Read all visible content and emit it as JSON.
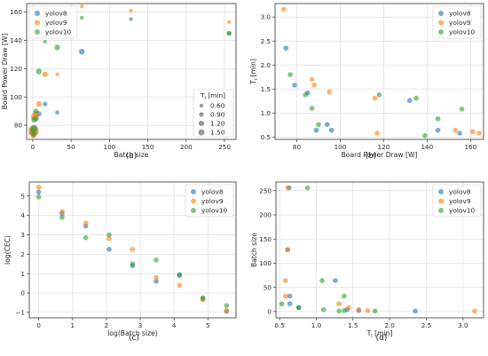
{
  "colors": {
    "yolov8": "#1f77b4",
    "yolov9": "#ff7f0e",
    "yolov10": "#2ca02c"
  },
  "chart_data": [
    {
      "id": "a",
      "panel_label": "(a)",
      "type": "scatter",
      "xlabel": "Batch size",
      "ylabel": "Board Power Draw [W]",
      "xlim": [
        -8,
        265
      ],
      "ylim": [
        70,
        166
      ],
      "xticks": [
        0,
        50,
        100,
        150,
        200,
        250
      ],
      "yticks": [
        80,
        100,
        120,
        140,
        160
      ],
      "grid": true,
      "legend": {
        "position": "top-left",
        "entries": [
          "yolov8",
          "yolov9",
          "yolov10"
        ]
      },
      "size_legend": {
        "position": "bottom-right",
        "title": "T_i [min]",
        "title_main": "T",
        "title_sub": "i",
        "title_rest": " [min]",
        "entries": [
          {
            "label": "0.60",
            "value": 0.6
          },
          {
            "label": "0.90",
            "value": 0.9
          },
          {
            "label": "1.20",
            "value": 1.2
          },
          {
            "label": "1.50",
            "value": 1.5
          }
        ]
      },
      "series": [
        {
          "name": "yolov8",
          "points": [
            [
              1,
              75,
              2.3
            ],
            [
              2,
              78,
              1.6
            ],
            [
              4,
              85,
              1.4
            ],
            [
              8,
              88,
              1.2
            ],
            [
              16,
              95,
              0.9
            ],
            [
              32,
              89,
              0.7
            ],
            [
              64,
              132,
              1.3
            ],
            [
              128,
              155,
              0.6
            ],
            [
              256,
              145,
              0.6
            ],
            [
              1,
              73,
              1.0
            ]
          ]
        },
        {
          "name": "yolov9",
          "points": [
            [
              1,
              76,
              3.1
            ],
            [
              2,
              86,
              1.7
            ],
            [
              4,
              88,
              1.5
            ],
            [
              8,
              95,
              1.3
            ],
            [
              16,
              116,
              1.2
            ],
            [
              32,
              116,
              0.6
            ],
            [
              64,
              164,
              0.6
            ],
            [
              128,
              161,
              0.6
            ],
            [
              256,
              153,
              0.6
            ],
            [
              1,
              73,
              1.4
            ]
          ]
        },
        {
          "name": "yolov10",
          "points": [
            [
              1,
              77,
              1.8
            ],
            [
              2,
              84,
              1.4
            ],
            [
              4,
              90,
              1.1
            ],
            [
              8,
              118,
              1.4
            ],
            [
              16,
              139,
              0.5
            ],
            [
              32,
              135,
              1.3
            ],
            [
              64,
              156,
              0.6
            ],
            [
              256,
              145,
              1.1
            ],
            [
              1,
              74,
              0.8
            ]
          ]
        }
      ]
    },
    {
      "id": "b",
      "panel_label": "(b)",
      "type": "scatter",
      "xlabel": "Board Power Draw [W]",
      "ylabel": "T_i [min]",
      "ylabel_main": "T",
      "ylabel_sub": "i",
      "ylabel_rest": " [min]",
      "xlim": [
        70,
        166
      ],
      "ylim": [
        0.45,
        3.28
      ],
      "xticks": [
        80,
        100,
        120,
        140,
        160
      ],
      "yticks": [
        0.5,
        1.0,
        1.5,
        2.0,
        2.5,
        3.0
      ],
      "ytick_labels": [
        "0.5",
        "1.0",
        "1.5",
        "2.0",
        "2.5",
        "3.0"
      ],
      "grid": true,
      "legend": {
        "position": "top-right",
        "entries": [
          "yolov8",
          "yolov9",
          "yolov10"
        ]
      },
      "series": [
        {
          "name": "yolov8",
          "points": [
            [
              75,
              2.35
            ],
            [
              79,
              1.58
            ],
            [
              85,
              1.42
            ],
            [
              89,
              0.64
            ],
            [
              94,
              0.76
            ],
            [
              96,
              0.64
            ],
            [
              132,
              1.26
            ],
            [
              145,
              0.64
            ],
            [
              155,
              0.58
            ]
          ]
        },
        {
          "name": "yolov9",
          "points": [
            [
              74,
              3.16
            ],
            [
              87,
              1.7
            ],
            [
              88,
              1.58
            ],
            [
              95,
              1.44
            ],
            [
              116,
              1.31
            ],
            [
              117,
              0.58
            ],
            [
              153,
              0.64
            ],
            [
              161,
              0.61
            ],
            [
              164,
              0.58
            ]
          ]
        },
        {
          "name": "yolov10",
          "points": [
            [
              77,
              1.8
            ],
            [
              84,
              1.38
            ],
            [
              87,
              1.1
            ],
            [
              90,
              0.76
            ],
            [
              118,
              1.38
            ],
            [
              135,
              1.31
            ],
            [
              139,
              0.53
            ],
            [
              145,
              0.88
            ],
            [
              156,
              1.08
            ]
          ]
        }
      ]
    },
    {
      "id": "c",
      "panel_label": "(c)",
      "type": "scatter",
      "xlabel": "log(Batch size)",
      "ylabel": "log(CEC)",
      "xlim": [
        -0.28,
        5.83
      ],
      "ylim": [
        -1.28,
        5.72
      ],
      "xticks": [
        0,
        1,
        2,
        3,
        4,
        5
      ],
      "yticks": [
        -1,
        0,
        1,
        2,
        3,
        4,
        5
      ],
      "ytick_labels": [
        "−1",
        "0",
        "1",
        "2",
        "3",
        "4",
        "5"
      ],
      "grid": true,
      "legend": {
        "position": "top-right",
        "entries": [
          "yolov8",
          "yolov9",
          "yolov10"
        ]
      },
      "series": [
        {
          "name": "yolov8",
          "points": [
            [
              0,
              5.2
            ],
            [
              0.69,
              4.1
            ],
            [
              1.39,
              3.45
            ],
            [
              2.08,
              2.25
            ],
            [
              2.77,
              1.4
            ],
            [
              3.47,
              0.6
            ],
            [
              4.16,
              0.95
            ],
            [
              4.85,
              -0.3
            ],
            [
              5.55,
              -0.95
            ]
          ]
        },
        {
          "name": "yolov9",
          "points": [
            [
              0,
              5.45
            ],
            [
              0.69,
              4.2
            ],
            [
              1.39,
              3.6
            ],
            [
              2.08,
              2.8
            ],
            [
              2.77,
              2.25
            ],
            [
              3.47,
              0.8
            ],
            [
              4.16,
              0.4
            ],
            [
              4.85,
              -0.35
            ],
            [
              5.55,
              -0.9
            ]
          ]
        },
        {
          "name": "yolov10",
          "points": [
            [
              0,
              4.95
            ],
            [
              0.69,
              3.9
            ],
            [
              1.39,
              2.85
            ],
            [
              2.08,
              3.0
            ],
            [
              2.77,
              1.5
            ],
            [
              3.47,
              1.7
            ],
            [
              4.16,
              0.9
            ],
            [
              4.85,
              -0.25
            ],
            [
              5.55,
              -0.65
            ]
          ]
        }
      ]
    },
    {
      "id": "d",
      "panel_label": "(d)",
      "type": "scatter",
      "xlabel": "T_i [min]",
      "xlabel_main": "T",
      "xlabel_sub": "i",
      "xlabel_rest": " [min]",
      "ylabel": "Batch size",
      "xlim": [
        0.45,
        3.28
      ],
      "ylim": [
        -13,
        268
      ],
      "xticks": [
        0.5,
        1.0,
        1.5,
        2.0,
        2.5,
        3.0
      ],
      "xtick_labels": [
        "0.5",
        "1.0",
        "1.5",
        "2.0",
        "2.5",
        "3.0"
      ],
      "yticks": [
        0,
        50,
        100,
        150,
        200,
        250
      ],
      "grid": true,
      "legend": {
        "position": "top-right",
        "entries": [
          "yolov8",
          "yolov9",
          "yolov10"
        ]
      },
      "series": [
        {
          "name": "yolov8",
          "points": [
            [
              2.35,
              1
            ],
            [
              1.58,
              2
            ],
            [
              1.42,
              4
            ],
            [
              1.26,
              64
            ],
            [
              0.76,
              8
            ],
            [
              0.64,
              32
            ],
            [
              0.64,
              16
            ],
            [
              0.61,
              128
            ],
            [
              0.63,
              256
            ]
          ]
        },
        {
          "name": "yolov9",
          "points": [
            [
              3.16,
              1
            ],
            [
              1.7,
              2
            ],
            [
              1.58,
              4
            ],
            [
              1.44,
              8
            ],
            [
              1.31,
              16
            ],
            [
              0.58,
              32
            ],
            [
              0.58,
              64
            ],
            [
              0.61,
              128
            ],
            [
              0.61,
              256
            ]
          ]
        },
        {
          "name": "yolov10",
          "points": [
            [
              1.8,
              1
            ],
            [
              1.38,
              2
            ],
            [
              1.1,
              4
            ],
            [
              0.76,
              8
            ],
            [
              1.38,
              32
            ],
            [
              1.08,
              64
            ],
            [
              0.88,
              256
            ],
            [
              0.53,
              16
            ],
            [
              1.31,
              1
            ]
          ]
        }
      ]
    }
  ]
}
